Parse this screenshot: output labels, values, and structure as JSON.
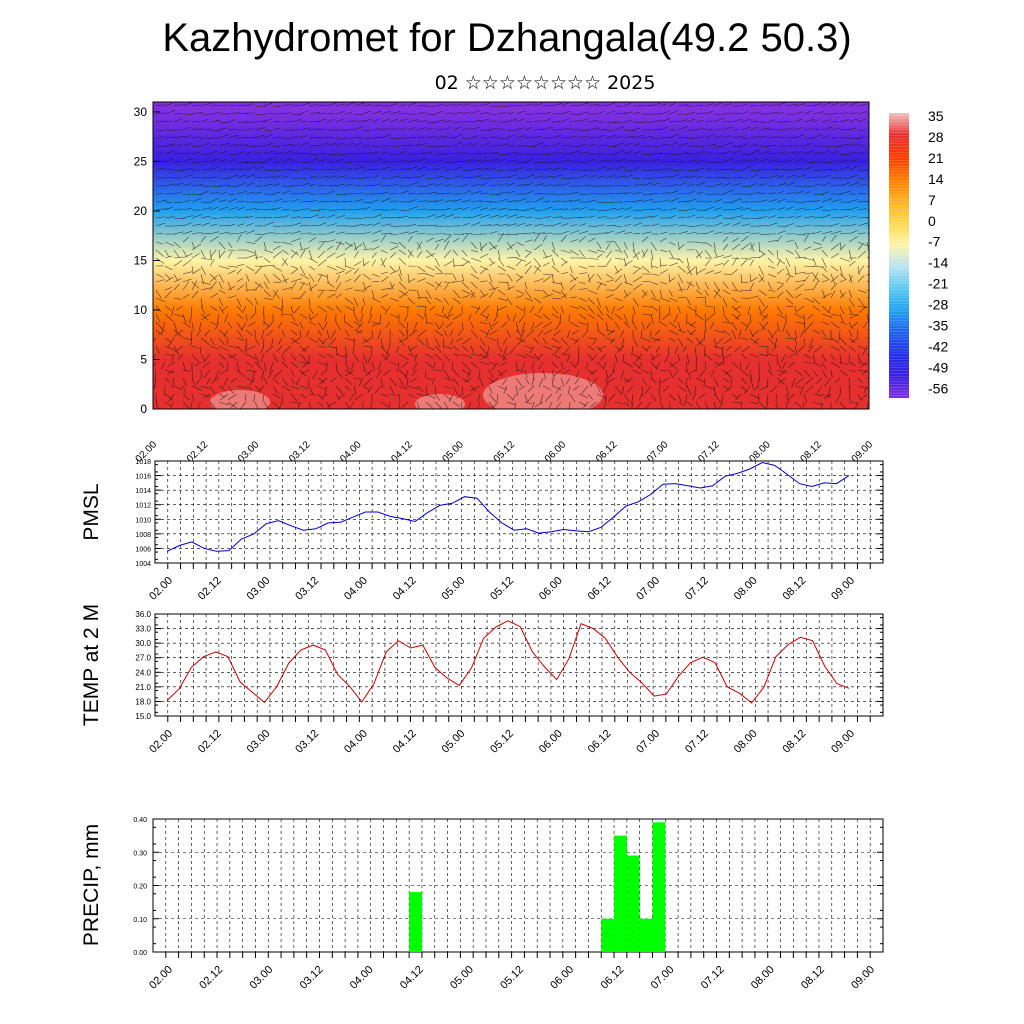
{
  "header": {
    "title": "Kazhydromet for Dzhangala(49.2 50.3)",
    "subtitle": "02 ☆☆☆☆☆☆☆☆ 2025"
  },
  "time_labels": [
    "02.00",
    "02.12",
    "03.00",
    "03.12",
    "04.00",
    "04.12",
    "05.00",
    "05.12",
    "06.00",
    "06.12",
    "07.00",
    "07.12",
    "08.00",
    "08.12",
    "09.00"
  ],
  "chart_data": [
    {
      "type": "heatmap",
      "title": "",
      "ylim": [
        0,
        31
      ],
      "y_ticks": [
        "0",
        "5",
        "10",
        "15",
        "20",
        "25",
        "30"
      ],
      "colorbar": {
        "labels": [
          "35",
          "28",
          "21",
          "14",
          "7",
          "0",
          "-7",
          "-14",
          "-21",
          "-28",
          "-35",
          "-42",
          "-49",
          "-56"
        ],
        "colors": [
          "#f3c0c0",
          "#e63030",
          "#ff3a00",
          "#ff7a00",
          "#ffb020",
          "#ffd84a",
          "#fff4a8",
          "#b8e4f0",
          "#5cc8f0",
          "#20a0f0",
          "#2060f0",
          "#2030e8",
          "#3a20e0",
          "#8030e0"
        ]
      },
      "temperature_profile": {
        "heights": [
          0,
          5,
          10,
          15,
          20,
          25,
          30
        ],
        "values": [
          31,
          25,
          12,
          -4,
          -26,
          -46,
          -55
        ]
      },
      "wind_arrows": "yes"
    },
    {
      "type": "line",
      "ylabel": "PMSL",
      "ylim": [
        1004,
        1018
      ],
      "y_ticks": [
        "1004",
        "1006",
        "1008",
        "1010",
        "1012",
        "1014",
        "1016",
        "1018"
      ],
      "color": "#0000d0",
      "series": [
        {
          "values": [
            1005.6,
            1006.4,
            1006.9,
            1006.0,
            1005.6,
            1005.7,
            1007.3,
            1008.0,
            1009.4,
            1009.8,
            1009.1,
            1008.5,
            1008.7,
            1009.5,
            1009.6,
            1010.3,
            1011.0,
            1011.0,
            1010.4,
            1010.1,
            1009.7,
            1010.9,
            1011.9,
            1012.2,
            1013.1,
            1012.9,
            1011.0,
            1009.5,
            1008.5,
            1008.7,
            1008.1,
            1008.3,
            1008.6,
            1008.4,
            1008.3,
            1008.9,
            1010.3,
            1011.8,
            1012.4,
            1013.4,
            1014.8,
            1014.9,
            1014.6,
            1014.3,
            1014.6,
            1015.9,
            1016.3,
            1016.9,
            1017.8,
            1017.4,
            1016.2,
            1014.9,
            1014.5,
            1015.0,
            1014.9,
            1016.0
          ]
        }
      ]
    },
    {
      "type": "line",
      "ylabel": "TEMP at 2 M",
      "ylim": [
        15,
        36
      ],
      "y_ticks": [
        "15.0",
        "18.0",
        "21.0",
        "24.0",
        "27.0",
        "30.0",
        "33.0",
        "36.0"
      ],
      "color": "#d00000",
      "series": [
        {
          "values": [
            18.2,
            20.6,
            25.0,
            27.2,
            28.2,
            27.2,
            22.0,
            19.9,
            17.8,
            21.0,
            25.9,
            28.6,
            29.6,
            28.6,
            23.6,
            21.1,
            17.9,
            21.7,
            28.2,
            30.5,
            29.0,
            29.6,
            25.0,
            22.8,
            21.3,
            24.9,
            31.0,
            33.3,
            34.6,
            33.4,
            28.2,
            25.1,
            22.5,
            26.8,
            34.0,
            33.0,
            31.0,
            27.1,
            24.0,
            21.8,
            19.1,
            19.5,
            23.2,
            26.0,
            27.1,
            26.0,
            21.0,
            19.7,
            17.7,
            20.9,
            27.2,
            29.7,
            31.2,
            30.5,
            25.3,
            21.7,
            20.7
          ]
        }
      ]
    },
    {
      "type": "bar",
      "ylabel": "PRECIP, mm",
      "ylim": [
        0,
        0.4
      ],
      "y_ticks": [
        "0.00",
        "0.10",
        "0.20",
        "0.30",
        "0.40"
      ],
      "color": "#00ff00",
      "bars": [
        {
          "t": 20.5,
          "value": 0.18
        },
        {
          "t": 35.5,
          "value": 0.1
        },
        {
          "t": 36.5,
          "value": 0.35
        },
        {
          "t": 37.5,
          "value": 0.29
        },
        {
          "t": 38.5,
          "value": 0.1
        },
        {
          "t": 39.5,
          "value": 0.39
        }
      ]
    }
  ]
}
